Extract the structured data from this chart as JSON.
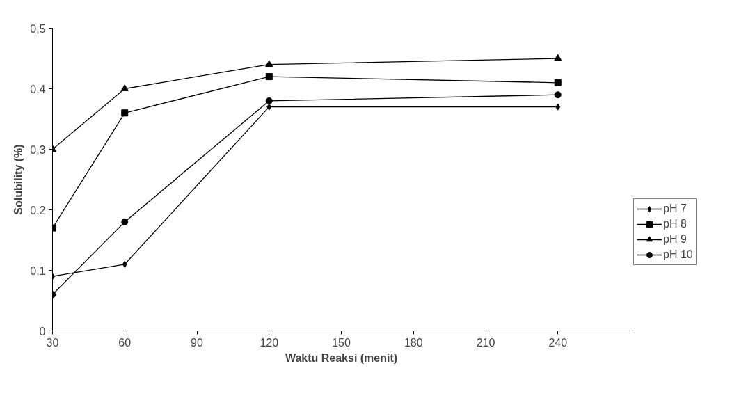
{
  "chart_data": {
    "type": "line",
    "xlabel": "Waktu Reaksi (menit)",
    "ylabel": "Solubility (%)",
    "x": [
      30,
      60,
      120,
      240
    ],
    "series": [
      {
        "name": "pH 7",
        "color": "#000000",
        "marker": "diamond",
        "values": [
          0.09,
          0.11,
          0.37,
          0.37
        ]
      },
      {
        "name": "pH 8",
        "color": "#010101",
        "marker": "square",
        "values": [
          0.17,
          0.36,
          0.42,
          0.41
        ]
      },
      {
        "name": "pH 9",
        "color": "#020202",
        "marker": "triangle",
        "values": [
          0.3,
          0.4,
          0.44,
          0.45
        ]
      },
      {
        "name": "pH 10",
        "color": "#030303",
        "marker": "circle",
        "values": [
          0.06,
          0.18,
          0.38,
          0.39
        ]
      }
    ],
    "xlim": [
      30,
      270
    ],
    "xticks": [
      30,
      60,
      90,
      120,
      150,
      180,
      210,
      240
    ],
    "ylim": [
      0,
      0.5
    ],
    "yticks": [
      0,
      {
        "value": 0.1,
        "label": "0,1"
      },
      {
        "value": 0.2,
        "label": "0,2"
      },
      {
        "value": 0.3,
        "label": "0,3"
      },
      {
        "value": 0.4,
        "label": "0,4"
      },
      {
        "value": 0.5,
        "label": "0,5"
      }
    ],
    "grid": false,
    "legend": "right",
    "line_style": "solid"
  }
}
